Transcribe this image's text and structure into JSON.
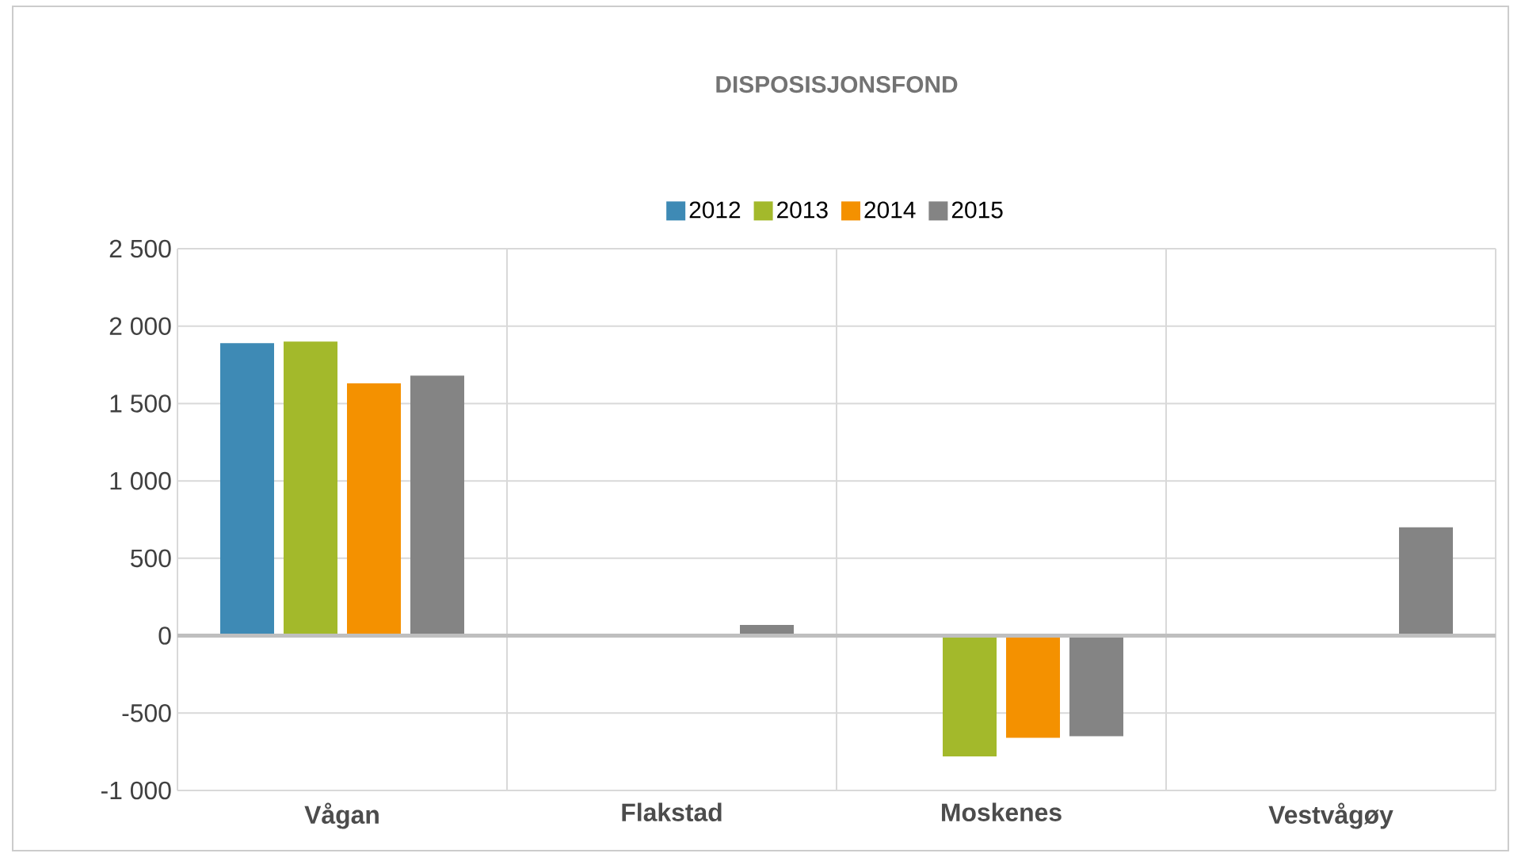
{
  "chart_data": {
    "type": "bar",
    "title": "DISPOSISJONSFOND",
    "categories": [
      "Vågan",
      "Flakstad",
      "Moskenes",
      "Vestvågøy"
    ],
    "series": [
      {
        "name": "2012",
        "color": "#3e8ab5",
        "values": [
          1890,
          null,
          null,
          null
        ]
      },
      {
        "name": "2013",
        "color": "#a3b92b",
        "values": [
          1900,
          null,
          -780,
          null
        ]
      },
      {
        "name": "2014",
        "color": "#f49100",
        "values": [
          1630,
          null,
          -660,
          null
        ]
      },
      {
        "name": "2015",
        "color": "#848484",
        "values": [
          1680,
          70,
          -650,
          700
        ]
      }
    ],
    "ylim": [
      -1000,
      2500
    ],
    "yticks": [
      {
        "value": -1000,
        "label": "-1 000"
      },
      -500,
      0,
      500,
      {
        "value": 1000,
        "label": "1 000"
      },
      {
        "value": 1500,
        "label": "1 500"
      },
      {
        "value": 2000,
        "label": "2 000"
      },
      {
        "value": 2500,
        "label": "2 500"
      }
    ],
    "grid": true,
    "legend": "top"
  }
}
